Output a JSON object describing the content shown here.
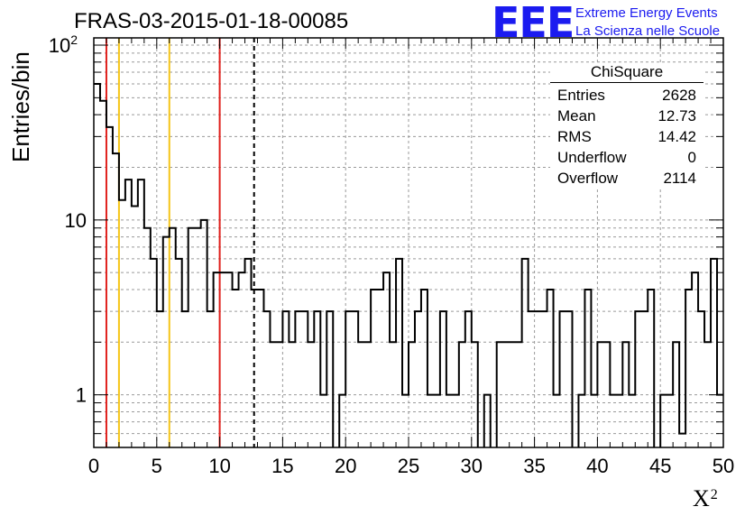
{
  "header": {
    "title": "FRAS-03-2015-01-18-00085",
    "logo_mark": "EEE",
    "logo_line1": "Extreme Energy Events",
    "logo_line2": "La Scienza nelle Scuole"
  },
  "stats_box": {
    "name": "ChiSquare",
    "rows": [
      {
        "label": "Entries",
        "value": "2628"
      },
      {
        "label": "Mean",
        "value": "12.73"
      },
      {
        "label": "RMS",
        "value": "14.42"
      },
      {
        "label": "Underflow",
        "value": "0"
      },
      {
        "label": "Overflow",
        "value": "2114"
      }
    ]
  },
  "chart_data": {
    "type": "histogram",
    "title": "FRAS-03-2015-01-18-00085",
    "xlabel": "X",
    "xlabel_superscript": "2",
    "ylabel": "Entries/bin",
    "xlim": [
      0,
      50
    ],
    "ylim": [
      0.5,
      110
    ],
    "yscale": "log",
    "grid": true,
    "bin_width": 0.5,
    "xticks": [
      "0",
      "5",
      "10",
      "15",
      "20",
      "25",
      "30",
      "35",
      "40",
      "45",
      "50"
    ],
    "yticks": [
      {
        "value": 1,
        "label": "1",
        "sup": ""
      },
      {
        "value": 10,
        "label": "10",
        "sup": ""
      },
      {
        "value": 100,
        "label": "10",
        "sup": "2"
      }
    ],
    "values": [
      60,
      48,
      34,
      24,
      13,
      17,
      12,
      17,
      9,
      6,
      3,
      8,
      9,
      6,
      3,
      9,
      9,
      10,
      3,
      5,
      5,
      5,
      4,
      5,
      6,
      4,
      4,
      3,
      2,
      2,
      3,
      2,
      3,
      3,
      2,
      3,
      1,
      3,
      0,
      1,
      3,
      3,
      2,
      2,
      4,
      4,
      5,
      2,
      6,
      1,
      2,
      3,
      4,
      1,
      1,
      3,
      1,
      1,
      2,
      3,
      2,
      0,
      1,
      0,
      2,
      2,
      2,
      2,
      6,
      3,
      3,
      3,
      4,
      1,
      3,
      3,
      0,
      1,
      4,
      1,
      2,
      2,
      1,
      1,
      2,
      1,
      3,
      3,
      4,
      0,
      1,
      1,
      2,
      0.6,
      4,
      5,
      3,
      2,
      6,
      1
    ],
    "vlines": [
      {
        "x": 1,
        "color": "#e0201c",
        "style": "solid"
      },
      {
        "x": 2,
        "color": "#f5c518",
        "style": "solid"
      },
      {
        "x": 6,
        "color": "#f5c518",
        "style": "solid"
      },
      {
        "x": 10,
        "color": "#e0201c",
        "style": "solid"
      },
      {
        "x": 12.73,
        "color": "#000000",
        "style": "dashed"
      }
    ]
  }
}
